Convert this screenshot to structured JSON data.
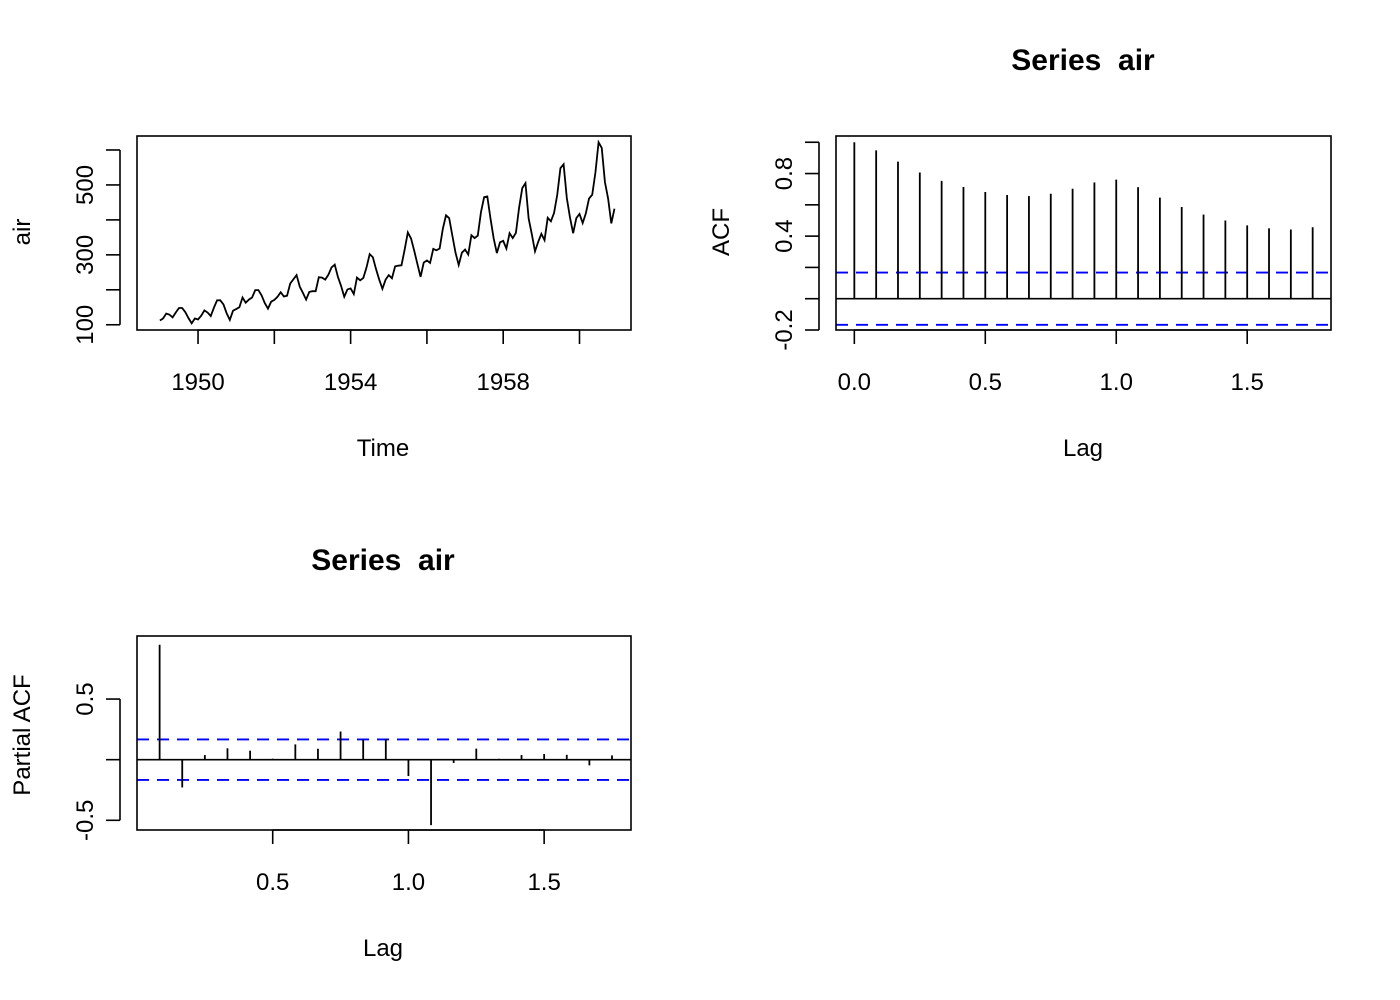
{
  "colors": {
    "series": "#000000",
    "ci": "#0000ff",
    "axis": "#000000"
  },
  "chart_data": [
    {
      "id": "ts",
      "type": "line",
      "title": "",
      "xlabel": "Time",
      "ylabel": "air",
      "xlim": [
        1948.4,
        1961.35
      ],
      "ylim": [
        85,
        640
      ],
      "xticks": [
        1950,
        1952,
        1954,
        1956,
        1958,
        1960
      ],
      "xtick_labels": [
        "1950",
        "",
        "1954",
        "",
        "1958",
        ""
      ],
      "yticks": [
        100,
        200,
        300,
        400,
        500,
        600
      ],
      "ytick_labels": [
        "100",
        "",
        "300",
        "",
        "500",
        ""
      ],
      "start": 1949,
      "frequency": 12,
      "values": [
        112,
        118,
        132,
        129,
        121,
        135,
        148,
        148,
        136,
        119,
        104,
        118,
        115,
        126,
        141,
        135,
        125,
        149,
        170,
        170,
        158,
        133,
        114,
        140,
        145,
        150,
        178,
        163,
        172,
        178,
        199,
        199,
        184,
        162,
        146,
        166,
        171,
        180,
        193,
        181,
        183,
        218,
        230,
        242,
        209,
        191,
        172,
        194,
        196,
        196,
        236,
        235,
        229,
        243,
        264,
        272,
        237,
        211,
        180,
        201,
        204,
        188,
        235,
        227,
        234,
        264,
        302,
        293,
        259,
        229,
        203,
        229,
        242,
        233,
        267,
        269,
        270,
        315,
        364,
        347,
        312,
        274,
        237,
        278,
        284,
        277,
        317,
        313,
        318,
        374,
        413,
        405,
        355,
        306,
        271,
        306,
        315,
        301,
        356,
        348,
        355,
        422,
        465,
        467,
        404,
        347,
        305,
        336,
        340,
        318,
        362,
        348,
        363,
        435,
        491,
        505,
        404,
        359,
        310,
        337,
        360,
        342,
        406,
        396,
        420,
        472,
        548,
        559,
        463,
        407,
        362,
        405,
        417,
        391,
        419,
        461,
        472,
        535,
        622,
        606,
        508,
        461,
        390,
        432
      ]
    },
    {
      "id": "acf",
      "type": "bar",
      "title": "Series  air",
      "xlabel": "Lag",
      "ylabel": "ACF",
      "xlim": [
        -0.07,
        1.82
      ],
      "ylim": [
        -0.2,
        1.04
      ],
      "xticks": [
        0.0,
        0.5,
        1.0,
        1.5
      ],
      "xtick_labels": [
        "0.0",
        "0.5",
        "1.0",
        "1.5"
      ],
      "yticks": [
        -0.2,
        0.0,
        0.2,
        0.4,
        0.6,
        0.8,
        1.0
      ],
      "ytick_labels": [
        "-0.2",
        "",
        "",
        "0.4",
        "",
        "0.8",
        ""
      ],
      "ci": [
        0.167,
        -0.167
      ],
      "lag_step": 0.0833333,
      "values": [
        1.0,
        0.948,
        0.876,
        0.807,
        0.753,
        0.714,
        0.682,
        0.663,
        0.656,
        0.671,
        0.703,
        0.743,
        0.761,
        0.713,
        0.646,
        0.586,
        0.538,
        0.5,
        0.469,
        0.45,
        0.442,
        0.457
      ]
    },
    {
      "id": "pacf",
      "type": "bar",
      "title": "Series  air",
      "xlabel": "Lag",
      "ylabel": "Partial ACF",
      "xlim": [
        0.0,
        1.82
      ],
      "ylim": [
        -0.58,
        1.02
      ],
      "xticks": [
        0.5,
        1.0,
        1.5
      ],
      "xtick_labels": [
        "0.5",
        "1.0",
        "1.5"
      ],
      "yticks": [
        -0.5,
        0.0,
        0.5
      ],
      "ytick_labels": [
        "-0.5",
        "",
        "0.5"
      ],
      "ci": [
        0.167,
        -0.167
      ],
      "lag_step": 0.0833333,
      "lag_start": 0.0833333,
      "values": [
        0.948,
        -0.229,
        0.038,
        0.094,
        0.074,
        0.008,
        0.126,
        0.09,
        0.232,
        0.166,
        0.171,
        -0.135,
        -0.54,
        -0.027,
        0.091,
        0.007,
        0.038,
        0.047,
        0.04,
        -0.047,
        0.035
      ]
    }
  ]
}
